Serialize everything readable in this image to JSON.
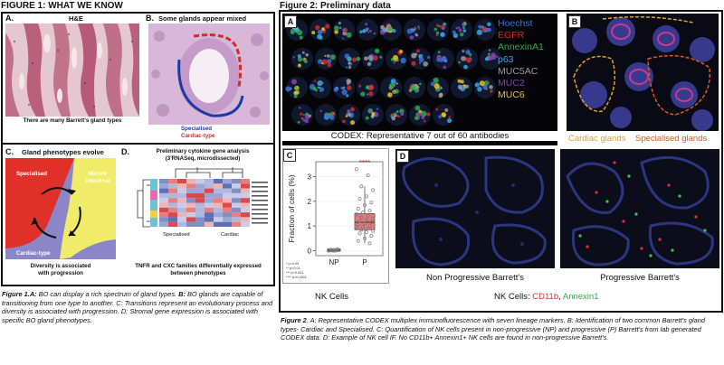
{
  "figure1": {
    "title": "FIGURE 1: WHAT WE KNOW",
    "panel_a": {
      "letter": "A.",
      "stain": "H&E",
      "caption": "There are many Barrett's gland types"
    },
    "panel_b": {
      "letter": "B.",
      "title": "Some glands appear mixed",
      "specialised": "Specialised",
      "cardiac": "Cardiac-type"
    },
    "panel_c": {
      "letter": "C.",
      "title": "Gland phenotypes evolve",
      "specialised": "Specialised",
      "mature": "Mature",
      "intestinal": "intestinal",
      "cardiac": "Cardiac-type",
      "caption_1": "Diversity is associated",
      "caption_2": "with progression"
    },
    "panel_d": {
      "letter": "D.",
      "title": "Preliminary cytokine gene analysis",
      "subtitle": "(3'RNASeq, microdissected)",
      "col_specialised": "Specialised",
      "col_cardiac": "Cardiac",
      "caption_1": "TNFR and CXC families differentially expressed",
      "caption_2": "between phenotypes"
    },
    "caption": {
      "label": "Figure 1.",
      "a": "A:",
      "a_text": " BO can display a rich spectrum of gland types. ",
      "b": "B:",
      "b_text": " BO glands are capable of transitioning from one type to another. ",
      "c": "C:",
      "c_text": " Transitions represent an evolutionary process and diversity is associated with progression. ",
      "d": "D:",
      "d_text": " Stromal gene expression is associated with specific BO gland phenotypes."
    }
  },
  "figure2": {
    "title": "Figure 2: Preliminary data",
    "panel_a": {
      "letter": "A",
      "caption": "CODEX: Representative 7 out of 60 antibodies",
      "markers": [
        {
          "name": "Hoechst",
          "color": "#3a6fd8"
        },
        {
          "name": "EGFR",
          "color": "#d22a1e"
        },
        {
          "name": "AnnexinA1",
          "color": "#2da84a"
        },
        {
          "name": "p63",
          "color": "#38a8e0"
        },
        {
          "name": "MUC5AC",
          "color": "#9a9a9a"
        },
        {
          "name": "MUC2",
          "color": "#8a3fb0"
        },
        {
          "name": "MUC6",
          "color": "#e8c21e"
        }
      ]
    },
    "panel_b": {
      "letter": "B",
      "cardiac": "Cardiac glands",
      "specialised": "Specialised glands",
      "cardiac_color": "#e0a030",
      "specialised_color": "#d85a1e"
    },
    "panel_c": {
      "letter": "C",
      "ylabel": "Fraction of cells (%)",
      "signif": "****",
      "legend": [
        "*    p<0.05",
        "**   p<0.01",
        "***  p<0.001",
        "**** p<0.0001"
      ],
      "label": "NK Cells"
    },
    "panel_d": {
      "letter": "D",
      "np_label": "Non Progressive Barrett's",
      "p_label": "Progressive Barrett's",
      "nk_prefix": "NK Cells: ",
      "cd11b": "CD11b",
      "sep": ", ",
      "annexin": "Annexin1"
    },
    "caption": {
      "label": "Figure 2",
      "text": ". A: Representative CODEX multiplex immunofluorescence with seven lineage markers. B: Identification of two common Barrett's gland types- Cardiac and Specialised. C: Quantification of NK cells present in non-progressive (NP) and progressive (P) Barrett's from lab generated CODEX data. D: Example of NK cell IF. No CD11b+ Annexin1+ NK cells are found in non-progressive Barrett's."
    }
  },
  "chart_data": {
    "type": "scatter",
    "ylabel": "Fraction of cells (%)",
    "categories": [
      "NP",
      "P"
    ],
    "yticks": [
      0,
      1,
      2,
      3
    ],
    "ylim": [
      -0.2,
      3.6
    ],
    "series": [
      {
        "category": "NP",
        "box": {
          "q1": 0.0,
          "median": 0.02,
          "q3": 0.05,
          "min": 0.0,
          "max": 0.08
        },
        "points": [
          0.0,
          0.01,
          0.02,
          0.03,
          0.0,
          0.05,
          0.02,
          0.04,
          0.01,
          0.06,
          0.0,
          0.03
        ]
      },
      {
        "category": "P",
        "box": {
          "q1": 0.85,
          "median": 1.15,
          "q3": 1.5,
          "min": 0.3,
          "max": 2.6
        },
        "points": [
          3.3,
          3.05,
          2.6,
          2.45,
          2.2,
          2.1,
          1.95,
          1.85,
          1.7,
          1.62,
          1.55,
          1.48,
          1.42,
          1.35,
          1.3,
          1.25,
          1.2,
          1.15,
          1.1,
          1.05,
          1.0,
          0.98,
          0.95,
          0.9,
          0.85,
          0.8,
          0.75,
          0.7,
          0.6,
          0.5,
          0.4,
          0.3
        ]
      }
    ]
  }
}
